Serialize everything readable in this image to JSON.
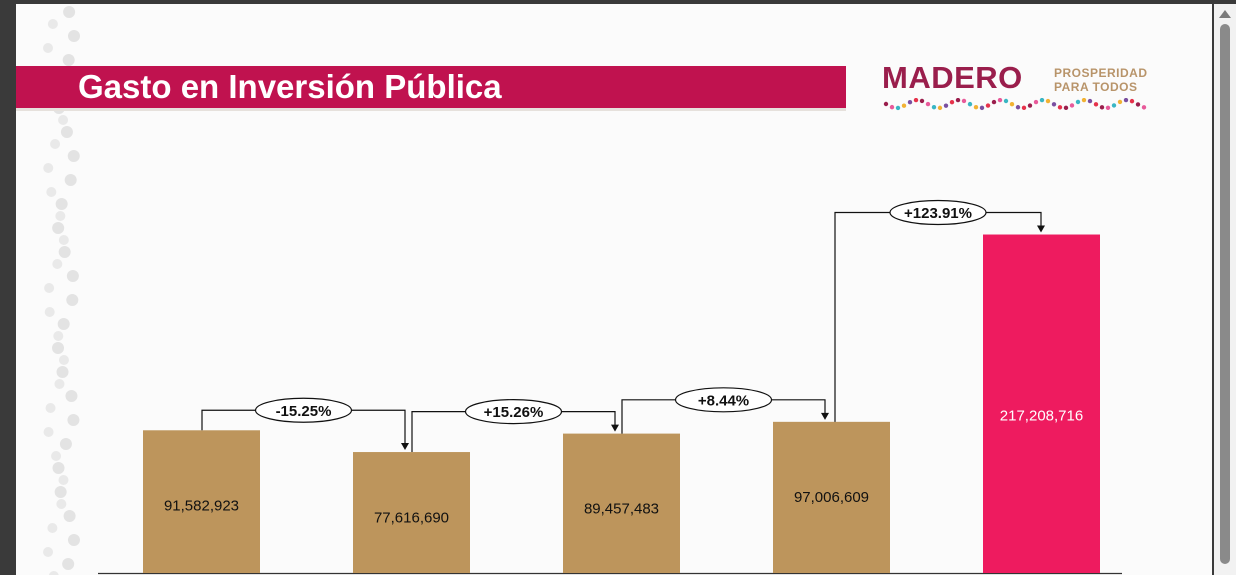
{
  "header": {
    "title": "Gasto en Inversión Pública"
  },
  "logo": {
    "word": "MADERO",
    "tagline_line1": "PROSPERIDAD",
    "tagline_line2": "PARA TODOS"
  },
  "chart_data": {
    "type": "bar",
    "title": "Gasto en Inversión Pública",
    "xlabel": "",
    "ylabel": "",
    "ylim": [
      0,
      240000000
    ],
    "grid": false,
    "legend": "none",
    "categories": [
      "",
      "",
      "",
      "",
      ""
    ],
    "values": [
      91582923,
      77616690,
      89457483,
      97006609,
      217208716
    ],
    "value_labels": [
      "91,582,923",
      "77,616,690",
      "89,457,483",
      "97,006,609",
      "217,208,716"
    ],
    "changes": [
      "-15.25%",
      "+15.26%",
      "+8.44%",
      "+123.91%"
    ],
    "colors": [
      "#bd955c",
      "#bd955c",
      "#bd955c",
      "#bd955c",
      "#ee1b5f"
    ],
    "label_colors": [
      "#111111",
      "#111111",
      "#111111",
      "#111111",
      "#ffffff"
    ]
  },
  "scrollbar": {
    "up_icon": "triangle-up"
  }
}
